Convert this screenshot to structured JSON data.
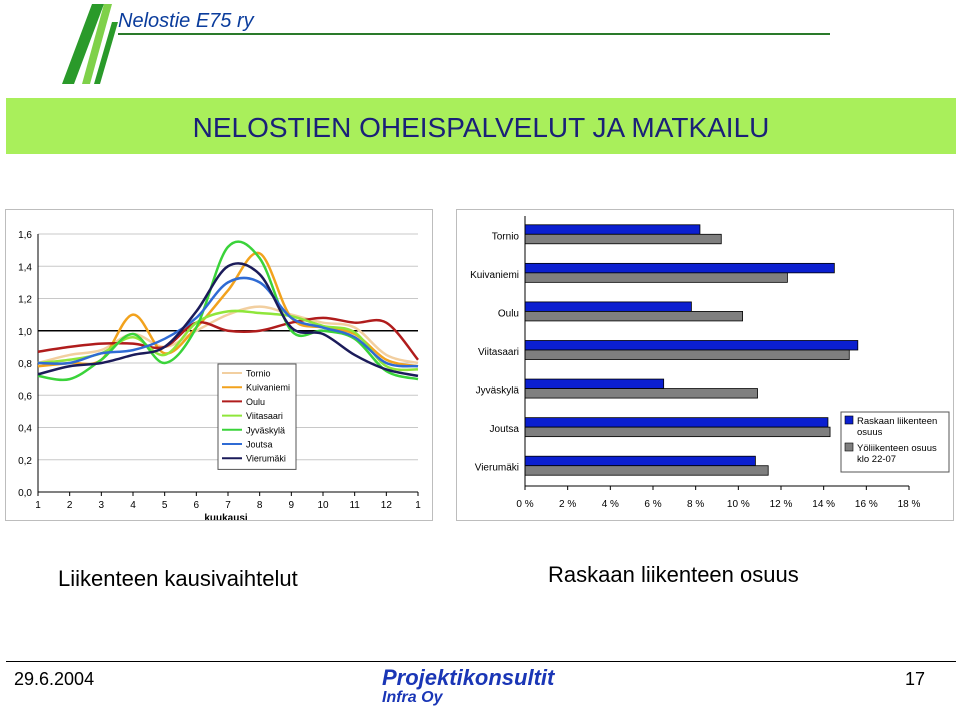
{
  "header": {
    "org_name": "Nelostie E75 ry"
  },
  "title": "NELOSTIEN OHEISPALVELUT JA MATKAILU",
  "captions": {
    "left": "Liikenteen kausivaihtelut",
    "right": "Raskaan liikenteen osuus"
  },
  "footer": {
    "date": "29.6.2004",
    "company": "Projektikonsultit",
    "company_sub": "Infra Oy",
    "page": "17"
  },
  "chart_data": [
    {
      "type": "line",
      "xlabel": "kuukausi",
      "ylabel": "",
      "ylim": [
        0,
        1.6
      ],
      "y_ticks": [
        "0,0",
        "0,2",
        "0,4",
        "0,6",
        "0,8",
        "1,0",
        "1,2",
        "1,4",
        "1,6"
      ],
      "categories": [
        "1",
        "2",
        "3",
        "4",
        "5",
        "6",
        "7",
        "8",
        "9",
        "10",
        "11",
        "12",
        "1"
      ],
      "legend_position": "center-left",
      "series": [
        {
          "name": "Tornio",
          "color": "#f2cfa0",
          "values": [
            0.8,
            0.85,
            0.88,
            0.98,
            0.9,
            1.0,
            1.1,
            1.15,
            1.1,
            1.05,
            1.02,
            0.85,
            0.8
          ]
        },
        {
          "name": "Kuivaniemi",
          "color": "#f2a21d",
          "values": [
            0.78,
            0.8,
            0.82,
            1.1,
            0.86,
            1.02,
            1.25,
            1.48,
            1.08,
            1.02,
            0.98,
            0.82,
            0.78
          ]
        },
        {
          "name": "Oulu",
          "color": "#b01c1c",
          "values": [
            0.87,
            0.9,
            0.92,
            0.92,
            0.9,
            1.05,
            1.0,
            1.0,
            1.05,
            1.08,
            1.05,
            1.05,
            0.82
          ]
        },
        {
          "name": "Viitasaari",
          "color": "#8fe63a",
          "values": [
            0.8,
            0.82,
            0.86,
            0.96,
            0.85,
            1.05,
            1.12,
            1.11,
            1.09,
            1.03,
            0.99,
            0.78,
            0.76
          ]
        },
        {
          "name": "Jyväskylä",
          "color": "#3ad33a",
          "values": [
            0.72,
            0.7,
            0.82,
            0.98,
            0.8,
            1.02,
            1.52,
            1.45,
            1.0,
            1.0,
            0.95,
            0.75,
            0.7
          ]
        },
        {
          "name": "Joutsa",
          "color": "#2f6bd4",
          "values": [
            0.8,
            0.8,
            0.86,
            0.88,
            0.95,
            1.08,
            1.3,
            1.3,
            1.08,
            1.02,
            0.96,
            0.8,
            0.78
          ]
        },
        {
          "name": "Vierumäki",
          "color": "#1b1b5a",
          "values": [
            0.73,
            0.78,
            0.8,
            0.85,
            0.9,
            1.12,
            1.4,
            1.35,
            1.02,
            0.98,
            0.85,
            0.76,
            0.72
          ]
        }
      ]
    },
    {
      "type": "bar",
      "orientation": "horizontal",
      "categories": [
        "Tornio",
        "Kuivaniemi",
        "Oulu",
        "Viitasaari",
        "Jyväskylä",
        "Joutsa",
        "Vierumäki"
      ],
      "xlim": [
        0,
        18
      ],
      "x_ticks": [
        "0 %",
        "2 %",
        "4 %",
        "6 %",
        "8 %",
        "10 %",
        "12 %",
        "14 %",
        "16 %",
        "18 %"
      ],
      "legend_position": "right",
      "series": [
        {
          "name": "Raskaan liikenteen osuus",
          "color": "#0b1fd0",
          "values": [
            8.2,
            14.5,
            7.8,
            15.6,
            6.5,
            14.2,
            10.8
          ]
        },
        {
          "name": "Yöliikenteen osuus klo 22-07",
          "color": "#7f7f7f",
          "values": [
            9.2,
            12.3,
            10.2,
            15.2,
            10.9,
            14.3,
            11.4
          ]
        }
      ]
    }
  ]
}
